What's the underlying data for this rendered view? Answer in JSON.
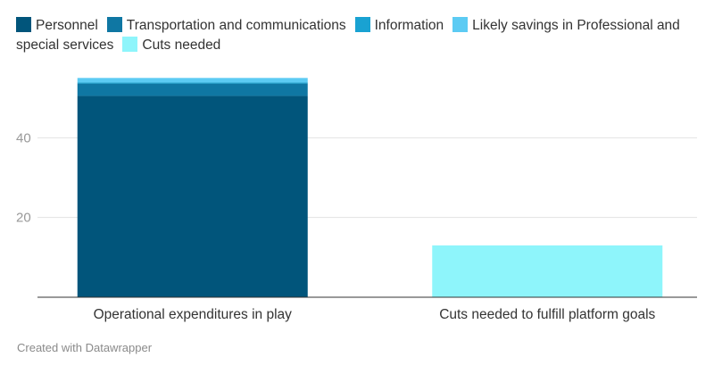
{
  "chart_data": {
    "type": "bar",
    "stacked": true,
    "categories": [
      "Operational expenditures in play",
      "Cuts needed to fulfill platform goals"
    ],
    "series": [
      {
        "name": "Personnel",
        "color": "#01557b",
        "values": [
          50.5,
          0
        ]
      },
      {
        "name": "Transportation and communications",
        "color": "#0f77a3",
        "values": [
          3.1,
          0
        ]
      },
      {
        "name": "Information",
        "color": "#19a2d2",
        "values": [
          0.3,
          0
        ]
      },
      {
        "name": "Likely savings in Professional and special services",
        "color": "#5ccbf3",
        "values": [
          1.1,
          0
        ]
      },
      {
        "name": "Cuts needed",
        "color": "#8ef5fb",
        "values": [
          0,
          13
        ]
      }
    ],
    "y_ticks": [
      20,
      40
    ],
    "ylim": [
      0,
      60
    ],
    "grid": true,
    "legend_position": "top"
  },
  "footer": "Created with Datawrapper"
}
